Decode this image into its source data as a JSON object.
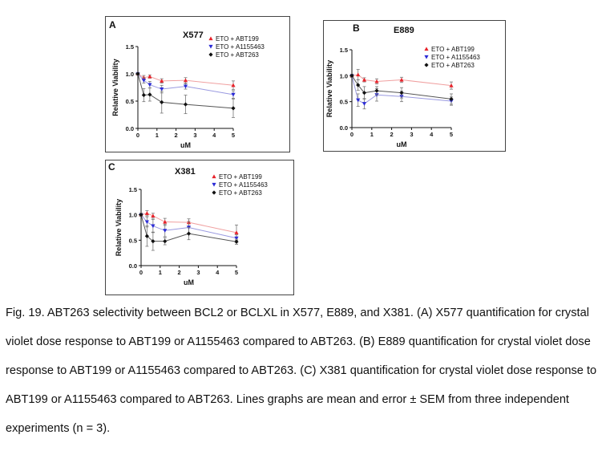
{
  "chart_data": [
    {
      "id": "A",
      "type": "line",
      "panel_letter": "A",
      "title": "X577",
      "xlabel": "uM",
      "ylabel": "Relative Viability",
      "xlim": [
        0,
        5
      ],
      "ylim": [
        0,
        1.5
      ],
      "xticks": [
        "0",
        "1",
        "2",
        "3",
        "4",
        "5"
      ],
      "yticks": [
        "0.0",
        "0.5",
        "1.0",
        "1.5"
      ],
      "legend_position": "top-right",
      "x": [
        0,
        0.31,
        0.625,
        1.25,
        2.5,
        5
      ],
      "series": [
        {
          "name": "ETO + ABT199",
          "color": "#e8222a",
          "marker": "triangle-up",
          "line": "#f0a0a0",
          "values": [
            1.0,
            0.93,
            0.95,
            0.87,
            0.88,
            0.79
          ],
          "errors": [
            0.02,
            0.04,
            0.03,
            0.04,
            0.05,
            0.08
          ]
        },
        {
          "name": "ETO + A1155463",
          "color": "#2b2bd6",
          "marker": "triangle-down",
          "line": "#9999e0",
          "values": [
            1.0,
            0.88,
            0.8,
            0.72,
            0.77,
            0.62
          ],
          "errors": [
            0.02,
            0.05,
            0.06,
            0.07,
            0.05,
            0.07
          ]
        },
        {
          "name": "ETO + ABT263",
          "color": "#111111",
          "marker": "diamond",
          "line": "#555555",
          "values": [
            1.0,
            0.61,
            0.62,
            0.48,
            0.44,
            0.37
          ],
          "errors": [
            0.02,
            0.12,
            0.12,
            0.2,
            0.17,
            0.17
          ]
        }
      ]
    },
    {
      "id": "B",
      "type": "line",
      "panel_letter": "B",
      "title": "E889",
      "xlabel": "uM",
      "ylabel": "Relative Viability",
      "xlim": [
        0,
        5
      ],
      "ylim": [
        0,
        1.5
      ],
      "xticks": [
        "0",
        "1",
        "2",
        "3",
        "4",
        "5"
      ],
      "yticks": [
        "0.0",
        "0.5",
        "1.0",
        "1.5"
      ],
      "legend_position": "top-right",
      "x": [
        0,
        0.31,
        0.625,
        1.25,
        2.5,
        5
      ],
      "series": [
        {
          "name": "ETO + ABT199",
          "color": "#e8222a",
          "marker": "triangle-up",
          "line": "#f0a0a0",
          "values": [
            1.0,
            1.02,
            0.92,
            0.89,
            0.92,
            0.81
          ],
          "errors": [
            0.03,
            0.1,
            0.04,
            0.05,
            0.05,
            0.07
          ]
        },
        {
          "name": "ETO + A1155463",
          "color": "#2b2bd6",
          "marker": "triangle-down",
          "line": "#9999e0",
          "values": [
            1.0,
            0.53,
            0.46,
            0.63,
            0.6,
            0.51
          ],
          "errors": [
            0.03,
            0.12,
            0.1,
            0.12,
            0.1,
            0.08
          ]
        },
        {
          "name": "ETO + ABT263",
          "color": "#111111",
          "marker": "diamond",
          "line": "#555555",
          "values": [
            1.0,
            0.82,
            0.67,
            0.71,
            0.67,
            0.55
          ],
          "errors": [
            0.03,
            0.1,
            0.12,
            0.08,
            0.1,
            0.1
          ]
        }
      ]
    },
    {
      "id": "C",
      "type": "line",
      "panel_letter": "C",
      "title": "X381",
      "xlabel": "uM",
      "ylabel": "Relative Viability",
      "xlim": [
        0,
        5
      ],
      "ylim": [
        0,
        1.5
      ],
      "xticks": [
        "0",
        "1",
        "2",
        "3",
        "4",
        "5"
      ],
      "yticks": [
        "0.0",
        "0.5",
        "1.0",
        "1.5"
      ],
      "legend_position": "top-right",
      "x": [
        0,
        0.31,
        0.625,
        1.25,
        2.5,
        5
      ],
      "series": [
        {
          "name": "ETO + ABT199",
          "color": "#e8222a",
          "marker": "triangle-up",
          "line": "#f0a0a0",
          "values": [
            1.0,
            1.03,
            0.98,
            0.86,
            0.85,
            0.65
          ],
          "errors": [
            0.03,
            0.05,
            0.05,
            0.07,
            0.07,
            0.15
          ]
        },
        {
          "name": "ETO + A1155463",
          "color": "#2b2bd6",
          "marker": "triangle-down",
          "line": "#9999e0",
          "values": [
            1.0,
            0.86,
            0.78,
            0.69,
            0.75,
            0.54
          ],
          "errors": [
            0.03,
            0.1,
            0.13,
            0.12,
            0.12,
            0.07
          ]
        },
        {
          "name": "ETO + ABT263",
          "color": "#111111",
          "marker": "diamond",
          "line": "#555555",
          "values": [
            1.0,
            0.58,
            0.48,
            0.48,
            0.63,
            0.47
          ],
          "errors": [
            0.03,
            0.2,
            0.18,
            0.07,
            0.12,
            0.05
          ]
        }
      ]
    }
  ],
  "caption": "Fig. 19. ABT263 selectivity between BCL2 or BCLXL in X577, E889, and X381. (A) X577 quantification for crystal violet dose response to ABT199 or A1155463 compared to ABT263. (B) E889 quantification for crystal violet dose response to ABT199 or A1155463 compared to ABT263. (C) X381 quantification for crystal violet dose response to ABT199 or A1155463 compared to ABT263. Lines graphs are mean and error ± SEM from three independent experiments (n = 3)."
}
